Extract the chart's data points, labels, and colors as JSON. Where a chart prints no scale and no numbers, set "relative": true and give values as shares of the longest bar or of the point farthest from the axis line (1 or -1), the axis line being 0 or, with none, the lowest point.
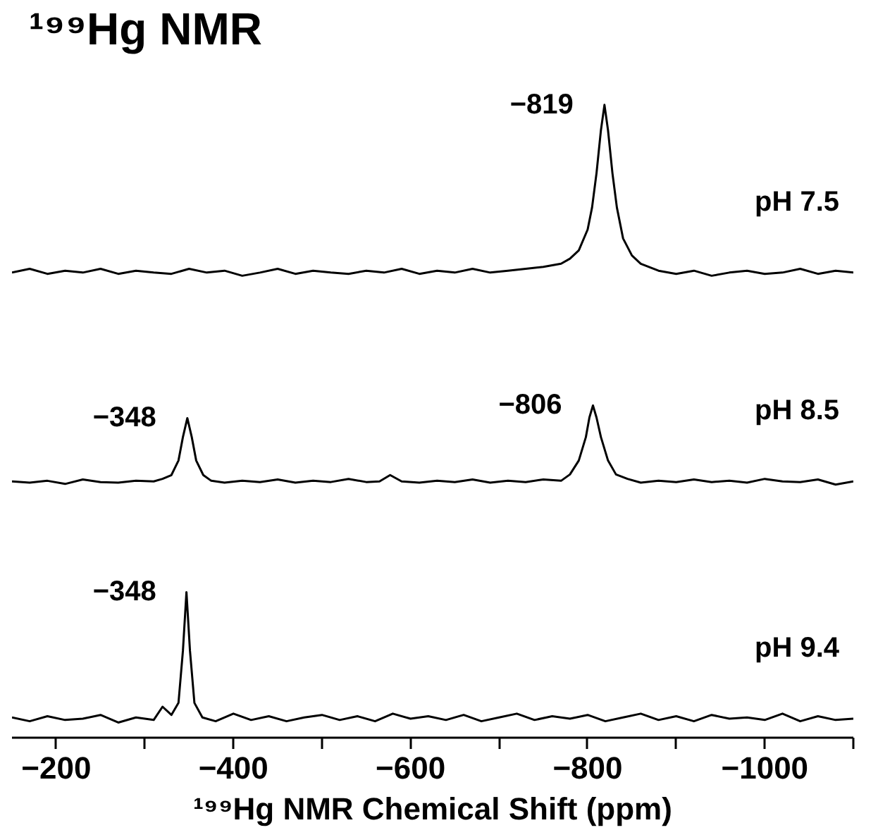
{
  "chart_data": {
    "type": "line",
    "relative": true,
    "title": "¹⁹⁹Hg NMR",
    "xlabel": "¹⁹⁹Hg NMR Chemical Shift (ppm)",
    "legend": false,
    "grid": false,
    "xlim": [
      -150,
      -1100
    ],
    "xticks": [
      {
        "value": -200,
        "label": "−200"
      },
      {
        "value": -300,
        "label": null
      },
      {
        "value": -400,
        "label": "−400"
      },
      {
        "value": -500,
        "label": null
      },
      {
        "value": -600,
        "label": "−600"
      },
      {
        "value": -700,
        "label": null
      },
      {
        "value": -800,
        "label": "−800"
      },
      {
        "value": -900,
        "label": null
      },
      {
        "value": -1000,
        "label": "−1000"
      },
      {
        "value": -1100,
        "label": null
      }
    ],
    "series": [
      {
        "name": "pH 7.5",
        "color": "#000000",
        "x": [
          -150,
          -170,
          -190,
          -210,
          -230,
          -250,
          -270,
          -290,
          -310,
          -330,
          -350,
          -370,
          -390,
          -410,
          -430,
          -450,
          -470,
          -490,
          -510,
          -530,
          -550,
          -570,
          -590,
          -610,
          -630,
          -650,
          -670,
          -690,
          -710,
          -730,
          -750,
          -770,
          -780,
          -790,
          -800,
          -805,
          -810,
          -815,
          -819,
          -823,
          -828,
          -833,
          -840,
          -850,
          -860,
          -880,
          -900,
          -920,
          -940,
          -960,
          -980,
          -1000,
          -1020,
          -1040,
          -1060,
          -1080,
          -1100
        ],
        "values": [
          0.735,
          0.741,
          0.733,
          0.738,
          0.735,
          0.741,
          0.733,
          0.738,
          0.735,
          0.733,
          0.741,
          0.735,
          0.738,
          0.73,
          0.735,
          0.741,
          0.733,
          0.738,
          0.735,
          0.733,
          0.738,
          0.735,
          0.741,
          0.733,
          0.738,
          0.735,
          0.741,
          0.735,
          0.738,
          0.741,
          0.744,
          0.749,
          0.757,
          0.77,
          0.803,
          0.838,
          0.892,
          0.96,
          1,
          0.96,
          0.892,
          0.838,
          0.789,
          0.762,
          0.749,
          0.738,
          0.733,
          0.738,
          0.73,
          0.735,
          0.738,
          0.733,
          0.735,
          0.741,
          0.733,
          0.738,
          0.735
        ]
      },
      {
        "name": "pH 8.5",
        "color": "#000000",
        "x": [
          -150,
          -170,
          -190,
          -210,
          -230,
          -250,
          -270,
          -290,
          -310,
          -320,
          -330,
          -338,
          -343,
          -348,
          -353,
          -358,
          -366,
          -375,
          -390,
          -410,
          -430,
          -450,
          -470,
          -490,
          -510,
          -530,
          -550,
          -565,
          -577,
          -590,
          -610,
          -630,
          -650,
          -670,
          -690,
          -710,
          -730,
          -750,
          -770,
          -780,
          -790,
          -798,
          -802,
          -806,
          -810,
          -815,
          -823,
          -832,
          -845,
          -860,
          -880,
          -900,
          -920,
          -940,
          -960,
          -980,
          -1000,
          -1020,
          -1040,
          -1060,
          -1080,
          -1100
        ],
        "values": [
          0.405,
          0.403,
          0.406,
          0.401,
          0.408,
          0.404,
          0.403,
          0.406,
          0.405,
          0.409,
          0.415,
          0.438,
          0.475,
          0.505,
          0.475,
          0.438,
          0.415,
          0.406,
          0.403,
          0.406,
          0.404,
          0.408,
          0.403,
          0.406,
          0.404,
          0.409,
          0.404,
          0.405,
          0.415,
          0.405,
          0.403,
          0.406,
          0.404,
          0.408,
          0.403,
          0.406,
          0.404,
          0.408,
          0.406,
          0.416,
          0.438,
          0.475,
          0.506,
          0.525,
          0.506,
          0.475,
          0.438,
          0.416,
          0.409,
          0.403,
          0.406,
          0.404,
          0.408,
          0.404,
          0.406,
          0.403,
          0.409,
          0.405,
          0.404,
          0.408,
          0.4,
          0.405
        ]
      },
      {
        "name": "pH 9.4",
        "color": "#000000",
        "x": [
          -150,
          -170,
          -190,
          -210,
          -230,
          -250,
          -270,
          -290,
          -310,
          -320,
          -330,
          -338,
          -343,
          -347,
          -351,
          -356,
          -365,
          -380,
          -400,
          -420,
          -440,
          -460,
          -480,
          -500,
          -520,
          -540,
          -560,
          -580,
          -600,
          -620,
          -640,
          -660,
          -680,
          -700,
          -720,
          -740,
          -760,
          -780,
          -800,
          -820,
          -840,
          -860,
          -880,
          -900,
          -920,
          -940,
          -960,
          -980,
          -1000,
          -1020,
          -1040,
          -1060,
          -1080,
          -1100
        ],
        "values": [
          0.032,
          0.026,
          0.034,
          0.028,
          0.03,
          0.036,
          0.024,
          0.032,
          0.028,
          0.049,
          0.036,
          0.055,
          0.137,
          0.23,
          0.137,
          0.055,
          0.032,
          0.026,
          0.038,
          0.028,
          0.034,
          0.026,
          0.032,
          0.036,
          0.028,
          0.034,
          0.026,
          0.038,
          0.03,
          0.034,
          0.028,
          0.036,
          0.026,
          0.032,
          0.038,
          0.028,
          0.034,
          0.03,
          0.036,
          0.026,
          0.032,
          0.038,
          0.028,
          0.034,
          0.026,
          0.036,
          0.03,
          0.032,
          0.028,
          0.038,
          0.026,
          0.034,
          0.028,
          0.03
        ]
      }
    ],
    "annotations": [
      {
        "text": "−819",
        "x": -819,
        "y": 1
      },
      {
        "text": "−348",
        "x": -348,
        "y": 0.505
      },
      {
        "text": "−806",
        "x": -806,
        "y": 0.525
      },
      {
        "text": "−348",
        "x": -348,
        "y": 0.23
      }
    ]
  }
}
